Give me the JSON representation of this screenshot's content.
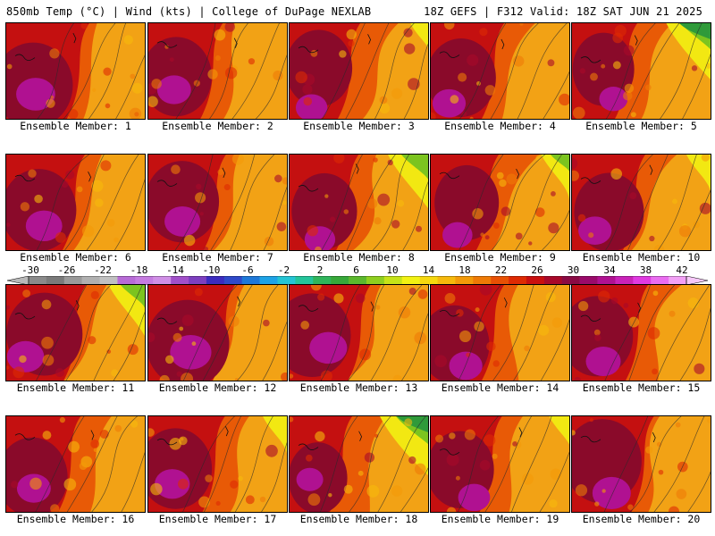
{
  "header": {
    "left": "850mb Temp (°C) | Wind (kts) | College of DuPage NEXLAB",
    "right": "18Z GEFS | F312 Valid: 18Z SAT JUN 21 2025"
  },
  "members": [
    {
      "label": "Ensemble Member: 1",
      "hot": 0.88,
      "cool": 0.05
    },
    {
      "label": "Ensemble Member: 2",
      "hot": 0.72,
      "cool": 0.08
    },
    {
      "label": "Ensemble Member: 3",
      "hot": 0.65,
      "cool": 0.22
    },
    {
      "label": "Ensemble Member: 4",
      "hot": 0.7,
      "cool": 0.12
    },
    {
      "label": "Ensemble Member: 5",
      "hot": 0.55,
      "cool": 0.55
    },
    {
      "label": "Ensemble Member: 6",
      "hot": 0.8,
      "cool": 0.08
    },
    {
      "label": "Ensemble Member: 7",
      "hot": 0.78,
      "cool": 0.1
    },
    {
      "label": "Ensemble Member: 8",
      "hot": 0.62,
      "cool": 0.5
    },
    {
      "label": "Ensemble Member: 9",
      "hot": 0.6,
      "cool": 0.35
    },
    {
      "label": "Ensemble Member: 10",
      "hot": 0.7,
      "cool": 0.3
    },
    {
      "label": "Ensemble Member: 11",
      "hot": 0.82,
      "cool": 0.45
    },
    {
      "label": "Ensemble Member: 12",
      "hot": 0.95,
      "cool": 0.06
    },
    {
      "label": "Ensemble Member: 13",
      "hot": 0.84,
      "cool": 0.08
    },
    {
      "label": "Ensemble Member: 14",
      "hot": 0.7,
      "cool": 0.12
    },
    {
      "label": "Ensemble Member: 15",
      "hot": 0.75,
      "cool": 0.1
    },
    {
      "label": "Ensemble Member: 16",
      "hot": 0.72,
      "cool": 0.15
    },
    {
      "label": "Ensemble Member: 17",
      "hot": 0.76,
      "cool": 0.3
    },
    {
      "label": "Ensemble Member: 18",
      "hot": 0.5,
      "cool": 0.6
    },
    {
      "label": "Ensemble Member: 19",
      "hot": 0.66,
      "cool": 0.25
    },
    {
      "label": "Ensemble Member: 20",
      "hot": 0.86,
      "cool": 0.1
    }
  ],
  "colorbar": {
    "ticks": [
      "-30",
      "-26",
      "-22",
      "-18",
      "-14",
      "-10",
      "-6",
      "-2",
      "2",
      "6",
      "10",
      "14",
      "18",
      "22",
      "26",
      "30",
      "34",
      "38",
      "42"
    ],
    "colors": [
      "#8a8a8a",
      "#7a7a7a",
      "#9a9a9a",
      "#b0b0b0",
      "#c0c0c0",
      "#b76bd6",
      "#c57be0",
      "#d08fe6",
      "#a14fc9",
      "#7d3fbf",
      "#3b2bbf",
      "#2f49c9",
      "#1e78d8",
      "#1ea3e6",
      "#24c4d4",
      "#24c49a",
      "#2fb55b",
      "#37a83a",
      "#5bb82d",
      "#8ecf1f",
      "#c5e318",
      "#f2f212",
      "#f6d80f",
      "#f6b90c",
      "#f39a09",
      "#ee7a06",
      "#e85004",
      "#de2a03",
      "#c90f0f",
      "#a8082a",
      "#8a0a44",
      "#9a0a6a",
      "#b01191",
      "#c922b8",
      "#e03ae0",
      "#ea6cf0",
      "#f2a0f5"
    ]
  }
}
